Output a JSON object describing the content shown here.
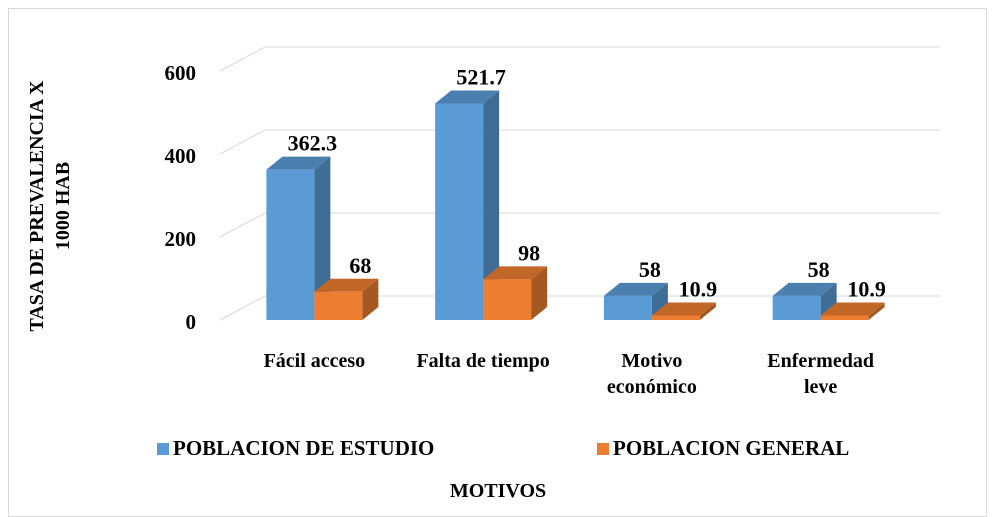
{
  "chart_data": {
    "type": "bar3d",
    "ylabel": "TASA DE PREVALENCIA X 1000 HAB",
    "xlabel": "MOTIVOS",
    "categories": [
      "Fácil acceso",
      "Falta de tiempo",
      "Motivo económico",
      "Enfermedad leve"
    ],
    "series": [
      {
        "name": "POBLACION DE ESTUDIO",
        "color": "#5b9bd5",
        "values": [
          362.3,
          521.7,
          58,
          58
        ]
      },
      {
        "name": "POBLACION GENERAL",
        "color": "#ed7d31",
        "values": [
          68,
          98,
          10.9,
          10.9
        ]
      }
    ],
    "ylim": [
      0,
      600
    ],
    "yticks": [
      0,
      200,
      400,
      600
    ],
    "grid": true
  }
}
